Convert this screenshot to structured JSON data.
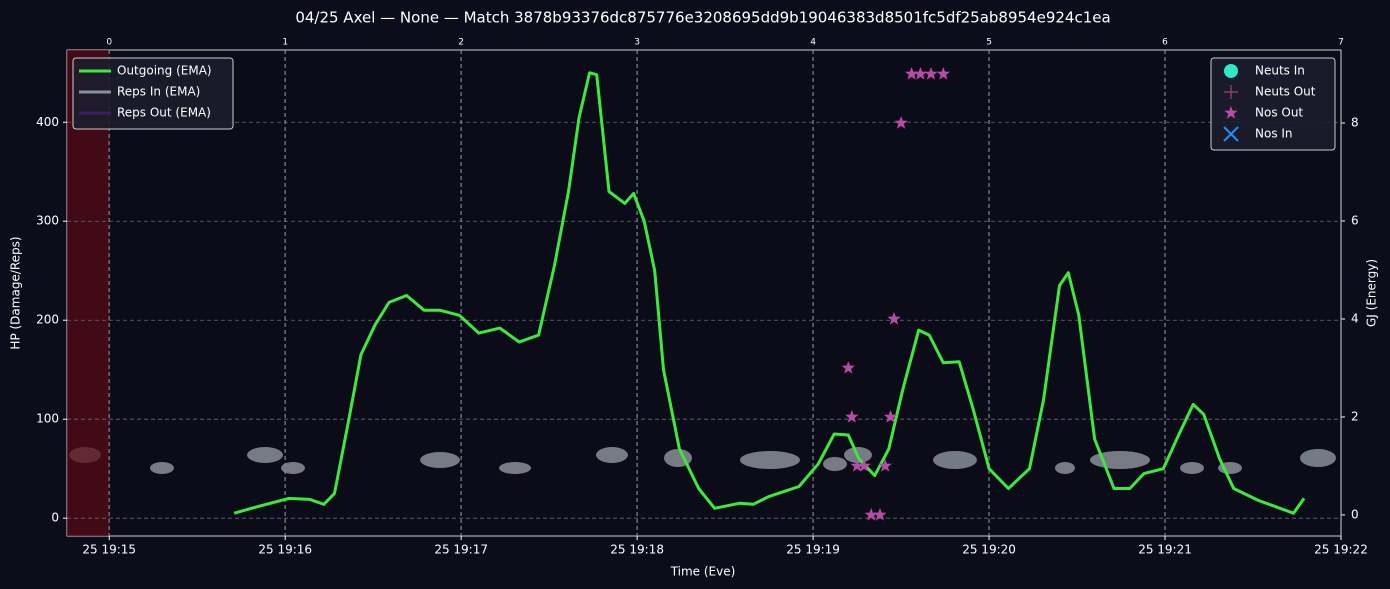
{
  "chart_data": {
    "type": "line",
    "title": "04/25 Axel — None — Match 3878b93376dc875776e3208695dd9b19046383d8501fc5df25ab8954e924c1ea",
    "xlabel": "Time (Eve)",
    "ylabel": "HP (Damage/Reps)",
    "y2label": "GJ (Energy)",
    "xlim": [
      -0.24,
      7
    ],
    "ylim": [
      -18,
      473
    ],
    "y2lim": [
      -0.43,
      9.49
    ],
    "xticks": [
      {
        "value": 0,
        "label": "25 19:15"
      },
      {
        "value": 1,
        "label": "25 19:16"
      },
      {
        "value": 2,
        "label": "25 19:17"
      },
      {
        "value": 3,
        "label": "25 19:18"
      },
      {
        "value": 4,
        "label": "25 19:19"
      },
      {
        "value": 5,
        "label": "25 19:20"
      },
      {
        "value": 6,
        "label": "25 19:21"
      },
      {
        "value": 7,
        "label": "25 19:22"
      }
    ],
    "x2ticks": [
      0,
      1,
      2,
      3,
      4,
      5,
      6,
      7
    ],
    "yticks": [
      0,
      100,
      200,
      300,
      400
    ],
    "y2ticks": [
      0,
      2,
      4,
      6,
      8
    ],
    "grid": true,
    "shaded_span": {
      "x": [
        -0.24,
        0
      ],
      "color": "#5a0a12"
    },
    "series": [
      {
        "name": "Outgoing (EMA)",
        "type": "line",
        "color": "#3ee83e",
        "legend": "upper left",
        "x": [
          0.71,
          0.85,
          1.02,
          1.14,
          1.22,
          1.28,
          1.36,
          1.43,
          1.51,
          1.59,
          1.69,
          1.79,
          1.88,
          1.99,
          2.1,
          2.22,
          2.33,
          2.44,
          2.53,
          2.61,
          2.67,
          2.73,
          2.77,
          2.84,
          2.93,
          2.98,
          3.04,
          3.1,
          3.15,
          3.24,
          3.35,
          3.44,
          3.58,
          3.66,
          3.75,
          3.92,
          4.03,
          4.12,
          4.2,
          4.26,
          4.35,
          4.43,
          4.51,
          4.6,
          4.66,
          4.74,
          4.83,
          4.91,
          5.0,
          5.11,
          5.23,
          5.31,
          5.4,
          5.45,
          5.51,
          5.6,
          5.71,
          5.8,
          5.88,
          5.99,
          6.08,
          6.16,
          6.22,
          6.31,
          6.39,
          6.53,
          6.73,
          6.79
        ],
        "values": [
          5,
          12,
          20,
          19,
          14,
          25,
          98,
          165,
          195,
          218,
          225,
          210,
          210,
          205,
          187,
          192,
          178,
          185,
          255,
          330,
          405,
          450,
          448,
          330,
          318,
          328,
          300,
          250,
          150,
          70,
          30,
          10,
          15,
          14,
          22,
          32,
          55,
          85,
          84,
          60,
          43,
          70,
          130,
          190,
          185,
          157,
          158,
          110,
          50,
          30,
          50,
          120,
          235,
          248,
          205,
          80,
          30,
          30,
          45,
          50,
          85,
          115,
          105,
          60,
          30,
          18,
          5,
          20
        ]
      },
      {
        "name": "Reps In (EMA)",
        "type": "line",
        "color": "#8a8fa0",
        "legend": "upper left",
        "x": [],
        "values": []
      },
      {
        "name": "Reps Out (EMA)",
        "type": "line",
        "color": "#3a2060",
        "legend": "upper left",
        "x": [],
        "values": []
      },
      {
        "name": "Neuts In",
        "type": "scatter",
        "marker": "circle",
        "color": "#2ee8c8",
        "axis": "y2",
        "legend": "upper right",
        "x": [],
        "values": []
      },
      {
        "name": "Neuts Out",
        "type": "scatter",
        "marker": "plus",
        "color": "#8a3a6a",
        "axis": "y2",
        "legend": "upper right",
        "x": [],
        "values": []
      },
      {
        "name": "Nos Out",
        "type": "scatter",
        "marker": "star",
        "color": "#b84aa8",
        "axis": "y2",
        "legend": "upper right",
        "x": [
          4.2,
          4.22,
          4.25,
          4.29,
          4.33,
          4.38,
          4.41,
          4.44,
          4.46,
          4.5,
          4.56,
          4.61,
          4.67,
          4.74
        ],
        "values": [
          3,
          2,
          1,
          1,
          0,
          0,
          1,
          2,
          4,
          8,
          9,
          9,
          9,
          9
        ]
      },
      {
        "name": "Nos In",
        "type": "scatter",
        "marker": "x",
        "color": "#1e90ff",
        "axis": "y2",
        "legend": "upper right",
        "x": [],
        "values": []
      }
    ]
  }
}
